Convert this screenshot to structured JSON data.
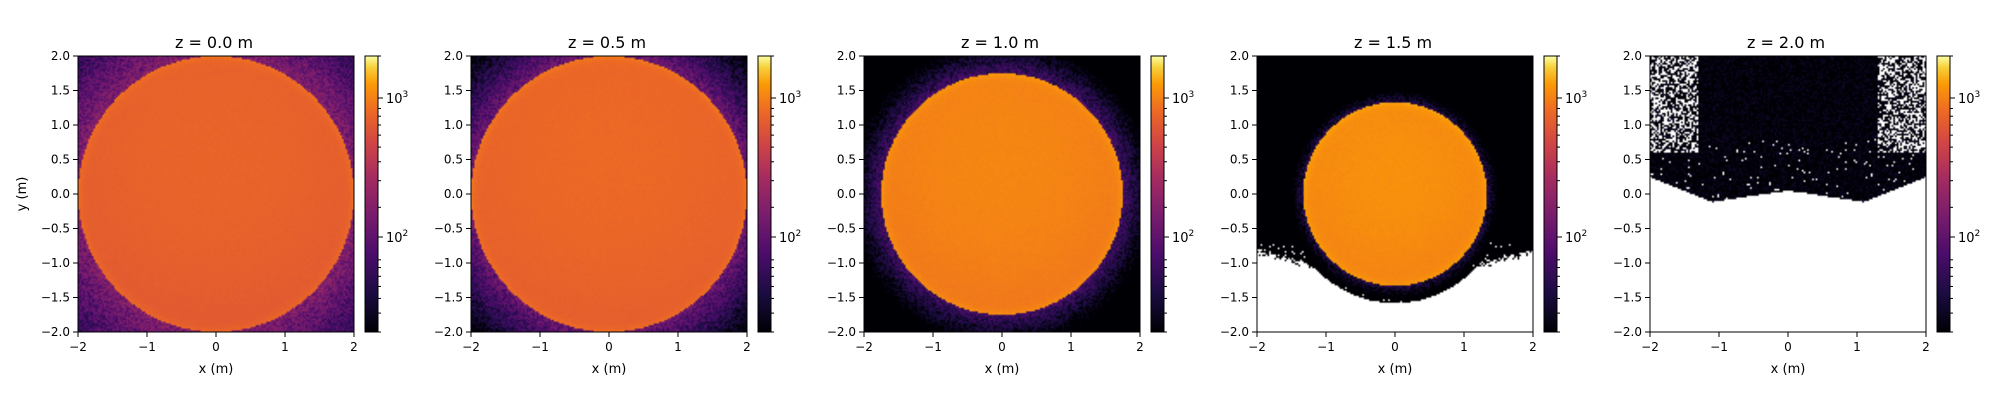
{
  "figure": {
    "ylabel": "y (m)",
    "colorbar_ticks": [
      "10",
      "10"
    ],
    "colorbar_tick_exponents": [
      "3",
      "2"
    ]
  },
  "colormap": "inferno",
  "chart_data": [
    {
      "type": "heatmap",
      "title": "z = 0.0 m",
      "xlabel": "x (m)",
      "ylabel": "y (m)",
      "xlim": [
        -2,
        2
      ],
      "ylim": [
        -2,
        2
      ],
      "xticks": [
        "−2",
        "−1",
        "0",
        "1",
        "2"
      ],
      "yticks": [
        "−2.0",
        "−1.5",
        "−1.0",
        "−0.5",
        "0.0",
        "0.5",
        "1.0",
        "1.5",
        "2.0"
      ],
      "color_scale": "log",
      "colorbar_range": [
        30,
        2000
      ],
      "disk_radius": 2.0,
      "center_value": 800,
      "outside_value": 200,
      "outside_falloff": 0.8
    },
    {
      "type": "heatmap",
      "title": "z = 0.5 m",
      "xlabel": "x (m)",
      "ylabel": "",
      "xlim": [
        -2,
        2
      ],
      "ylim": [
        -2,
        2
      ],
      "xticks": [
        "−2",
        "−1",
        "0",
        "1",
        "2"
      ],
      "yticks": [
        "−2.0",
        "−1.5",
        "−1.0",
        "−0.5",
        "0.0",
        "0.5",
        "1.0",
        "1.5",
        "2.0"
      ],
      "color_scale": "log",
      "colorbar_range": [
        30,
        2000
      ],
      "disk_radius": 2.0,
      "center_value": 850,
      "outside_value": 150,
      "outside_falloff": 0.5
    },
    {
      "type": "heatmap",
      "title": "z = 1.0 m",
      "xlabel": "x (m)",
      "ylabel": "",
      "xlim": [
        -2,
        2
      ],
      "ylim": [
        -2,
        2
      ],
      "xticks": [
        "−2",
        "−1",
        "0",
        "1",
        "2"
      ],
      "yticks": [
        "−2.0",
        "−1.5",
        "−1.0",
        "−0.5",
        "0.0",
        "0.5",
        "1.0",
        "1.5",
        "2.0"
      ],
      "color_scale": "log",
      "colorbar_range": [
        30,
        2000
      ],
      "disk_radius": 1.75,
      "center_value": 1100,
      "outside_value": 90,
      "outside_falloff": 0.35
    },
    {
      "type": "heatmap",
      "title": "z = 1.5 m",
      "xlabel": "x (m)",
      "ylabel": "",
      "xlim": [
        -2,
        2
      ],
      "ylim": [
        -2,
        2
      ],
      "xticks": [
        "−2",
        "−1",
        "0",
        "1",
        "2"
      ],
      "yticks": [
        "−2.0",
        "−1.5",
        "−1.0",
        "−0.5",
        "0.0",
        "0.5",
        "1.0",
        "1.5",
        "2.0"
      ],
      "color_scale": "log",
      "colorbar_range": [
        30,
        2000
      ],
      "disk_radius": 1.33,
      "center_value": 1200,
      "outside_value": 60,
      "outside_falloff": 0.18,
      "empty_region": "lower part of the panel (white, no data)"
    },
    {
      "type": "heatmap",
      "title": "z = 2.0 m",
      "xlabel": "x (m)",
      "ylabel": "",
      "xlim": [
        -2,
        2
      ],
      "ylim": [
        -2,
        2
      ],
      "xticks": [
        "−2",
        "−1",
        "0",
        "1",
        "2"
      ],
      "yticks": [
        "−2.0",
        "−1.5",
        "−1.0",
        "−0.5",
        "0.0",
        "0.5",
        "1.0",
        "1.5",
        "2.0"
      ],
      "color_scale": "log",
      "colorbar_range": [
        30,
        2000
      ],
      "disk_radius": 0,
      "center_value": 30,
      "outside_value": 30,
      "outside_falloff": 0.1,
      "empty_region": "most of the panel below y = 0 and the upper corners (white, no data)"
    }
  ]
}
